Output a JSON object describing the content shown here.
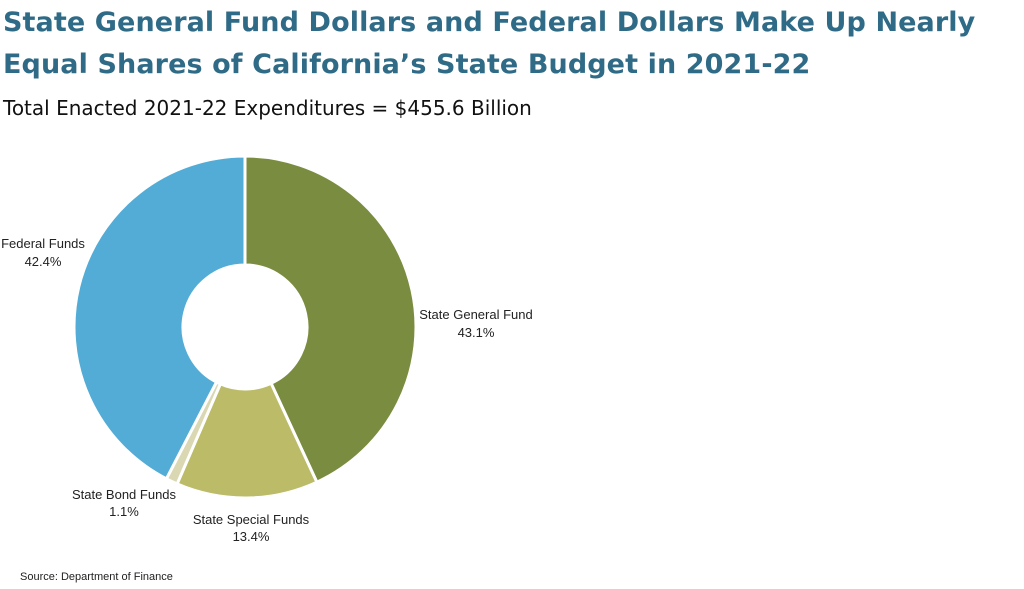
{
  "title": "State General Fund Dollars and Federal Dollars Make Up Nearly Equal Shares of California’s State Budget in 2021-22",
  "subtitle": "Total Enacted 2021-22 Expenditures = $455.6 Billion",
  "source": "Source: Department of Finance",
  "chart_data": {
    "type": "pie",
    "title": "State General Fund Dollars and Federal Dollars Make Up Nearly Equal Shares of California’s State Budget in 2021-22",
    "subtitle": "Total Enacted 2021-22 Expenditures = $455.6 Billion",
    "donut": true,
    "unit": "%",
    "slices": [
      {
        "label": "State General Fund",
        "value": 43.1,
        "display": "43.1%",
        "color": "#7a8c3f"
      },
      {
        "label": "State Special Funds",
        "value": 13.4,
        "display": "13.4%",
        "color": "#bbbb68"
      },
      {
        "label": "State Bond Funds",
        "value": 1.1,
        "display": "1.1%",
        "color": "#d9d8b3"
      },
      {
        "label": "Federal Funds",
        "value": 42.4,
        "display": "42.4%",
        "color": "#52acd6"
      }
    ]
  }
}
